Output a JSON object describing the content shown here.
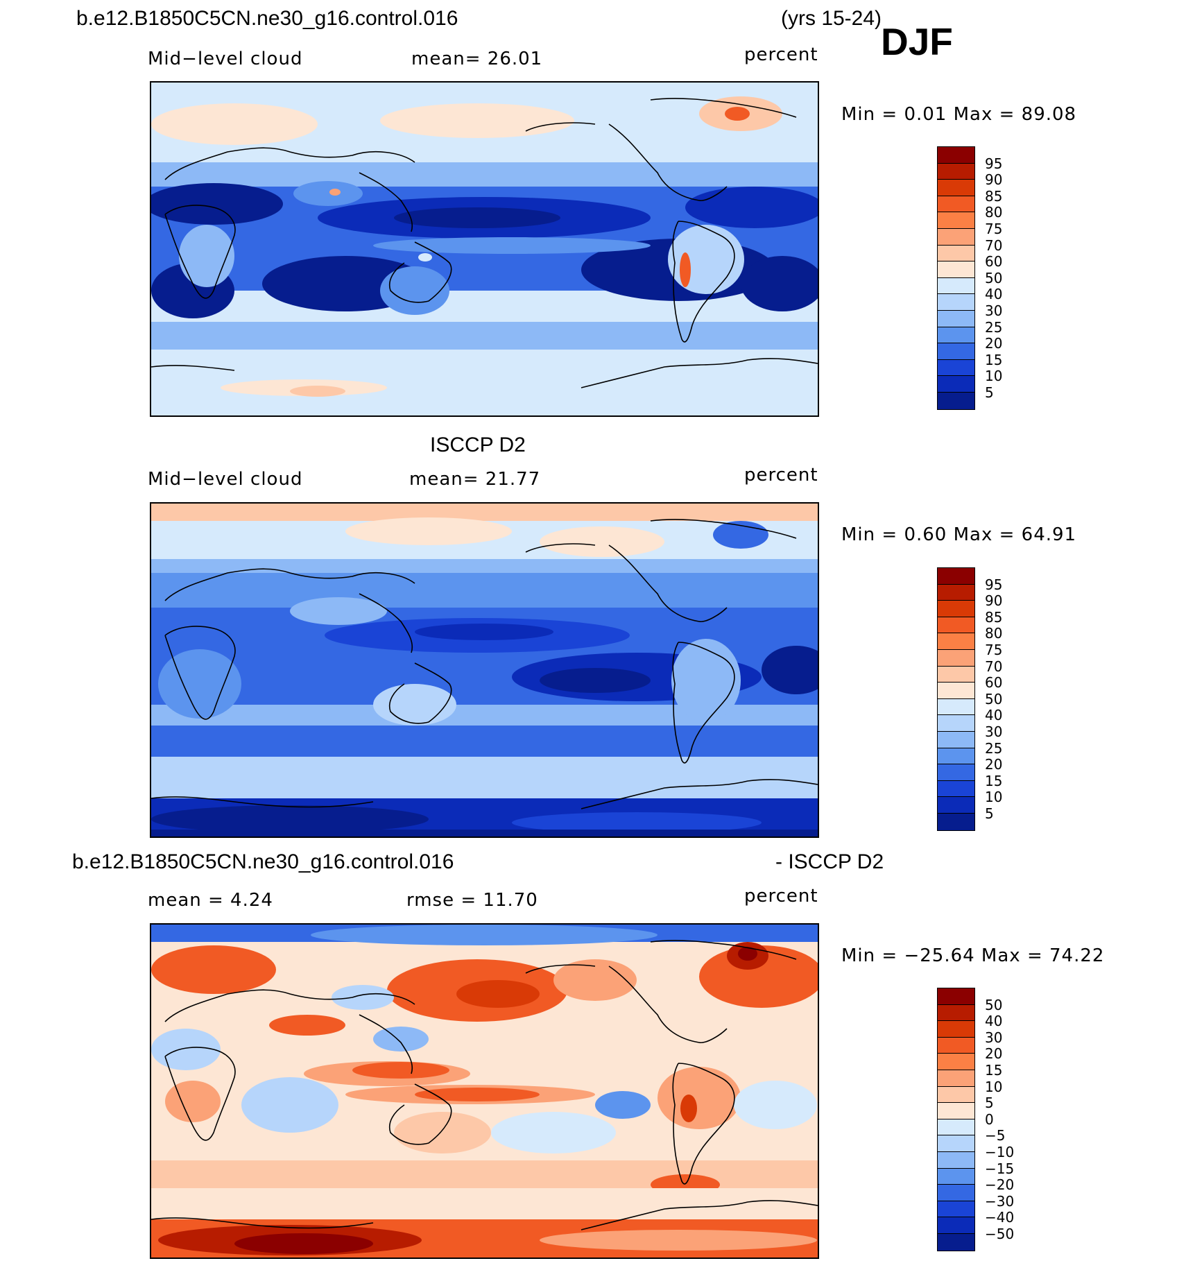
{
  "header": {
    "case_name": "b.e12.B1850C5CN.ne30_g16.control.016",
    "years": "(yrs 15-24)",
    "season": "DJF"
  },
  "panels": [
    {
      "id": "model",
      "top_title": "",
      "left_label": "Mid−level cloud",
      "center_label": "mean=   26.01",
      "right_label": "percent",
      "min_max": "Min  =    0.01  Max  =   89.08",
      "colorbar_labels": [
        "95",
        "90",
        "85",
        "80",
        "75",
        "70",
        "60",
        "50",
        "40",
        "30",
        "25",
        "20",
        "15",
        "10",
        "5"
      ],
      "colorbar_colors": [
        "#8b0000",
        "#b71c00",
        "#d93a06",
        "#f15a24",
        "#fb8045",
        "#fba277",
        "#fdc8a8",
        "#fde6d4",
        "#d6eafc",
        "#b6d5fb",
        "#8db9f6",
        "#5c94ee",
        "#3468e3",
        "#1a44d6",
        "#0b2bb8",
        "#061d8e"
      ]
    },
    {
      "id": "obs",
      "top_title": "ISCCP D2",
      "left_label": "Mid−level cloud",
      "center_label": "mean=   21.77",
      "right_label": "percent",
      "min_max": "Min  =    0.60  Max  =   64.91",
      "colorbar_labels": [
        "95",
        "90",
        "85",
        "80",
        "75",
        "70",
        "60",
        "50",
        "40",
        "30",
        "25",
        "20",
        "15",
        "10",
        "5"
      ],
      "colorbar_colors": [
        "#8b0000",
        "#b71c00",
        "#d93a06",
        "#f15a24",
        "#fb8045",
        "#fba277",
        "#fdc8a8",
        "#fde6d4",
        "#d6eafc",
        "#b6d5fb",
        "#8db9f6",
        "#5c94ee",
        "#3468e3",
        "#1a44d6",
        "#0b2bb8",
        "#061d8e"
      ]
    },
    {
      "id": "diff",
      "top_title_left": "b.e12.B1850C5CN.ne30_g16.control.016",
      "top_title_right": "- ISCCP D2",
      "left_label": "mean  =     4.24",
      "center_label": "rmse  =    11.70",
      "right_label": "percent",
      "min_max": "Min  = −25.64  Max  =    74.22",
      "colorbar_labels": [
        "50",
        "40",
        "30",
        "20",
        "15",
        "10",
        "5",
        "0",
        "−5",
        "−10",
        "−15",
        "−20",
        "−30",
        "−40",
        "−50"
      ],
      "colorbar_colors": [
        "#8b0000",
        "#b71c00",
        "#d93a06",
        "#f15a24",
        "#fb8045",
        "#fba277",
        "#fdc8a8",
        "#fde6d4",
        "#d6eafc",
        "#b6d5fb",
        "#8db9f6",
        "#5c94ee",
        "#3468e3",
        "#1a44d6",
        "#0b2bb8",
        "#061d8e"
      ]
    }
  ],
  "colors": {
    "ocean_low_cloud": "#061d8e",
    "mid_blue": "#3468e3",
    "light_blue": "#b6d5fb",
    "pale": "#d6eafc",
    "peach": "#fdc8a8",
    "orange_red": "#f15a24",
    "dark_red": "#8b0000",
    "coastline": "#000000"
  }
}
